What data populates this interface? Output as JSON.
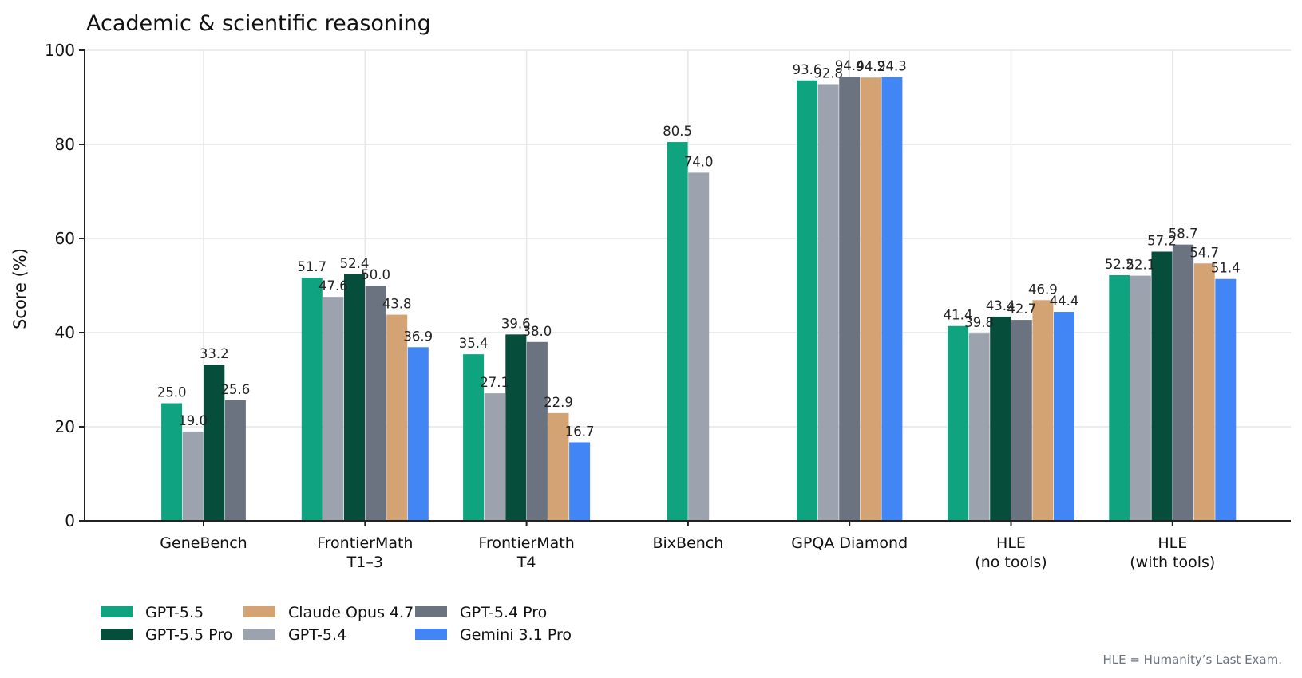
{
  "chart_data": {
    "type": "bar",
    "title": "Academic & scientific reasoning",
    "xlabel": "",
    "ylabel": "Score (%)",
    "ylim": [
      0,
      100
    ],
    "yticks": [
      0,
      20,
      40,
      60,
      80,
      100
    ],
    "grid": true,
    "legend_position": "bottom-left",
    "categories": [
      [
        "GeneBench"
      ],
      [
        "FrontierMath",
        "T1–3"
      ],
      [
        "FrontierMath",
        "T4"
      ],
      [
        "BixBench"
      ],
      [
        "GPQA Diamond"
      ],
      [
        "HLE",
        "(no tools)"
      ],
      [
        "HLE",
        "(with tools)"
      ]
    ],
    "series": [
      {
        "name": "GPT-5.5",
        "color": "#10a37f",
        "values": [
          25.0,
          51.7,
          35.4,
          80.5,
          93.6,
          41.4,
          52.2
        ]
      },
      {
        "name": "GPT-5.4",
        "color": "#9ca3af",
        "values": [
          19.0,
          47.6,
          27.1,
          74.0,
          92.8,
          39.8,
          52.1
        ]
      },
      {
        "name": "GPT-5.5 Pro",
        "color": "#064e3b",
        "values": [
          33.2,
          52.4,
          39.6,
          null,
          null,
          43.4,
          57.2
        ]
      },
      {
        "name": "GPT-5.4 Pro",
        "color": "#6b7280",
        "values": [
          25.6,
          50.0,
          38.0,
          null,
          94.4,
          42.7,
          58.7
        ]
      },
      {
        "name": "Claude Opus 4.7",
        "color": "#d4a373",
        "values": [
          null,
          43.8,
          22.9,
          null,
          94.2,
          46.9,
          54.7
        ]
      },
      {
        "name": "Gemini 3.1 Pro",
        "color": "#4285f4",
        "values": [
          null,
          36.9,
          16.7,
          null,
          94.3,
          44.4,
          51.4
        ]
      }
    ],
    "legend_order": [
      0,
      2,
      4,
      1,
      3,
      5
    ],
    "footnote": "HLE = Humanity’s Last Exam."
  }
}
